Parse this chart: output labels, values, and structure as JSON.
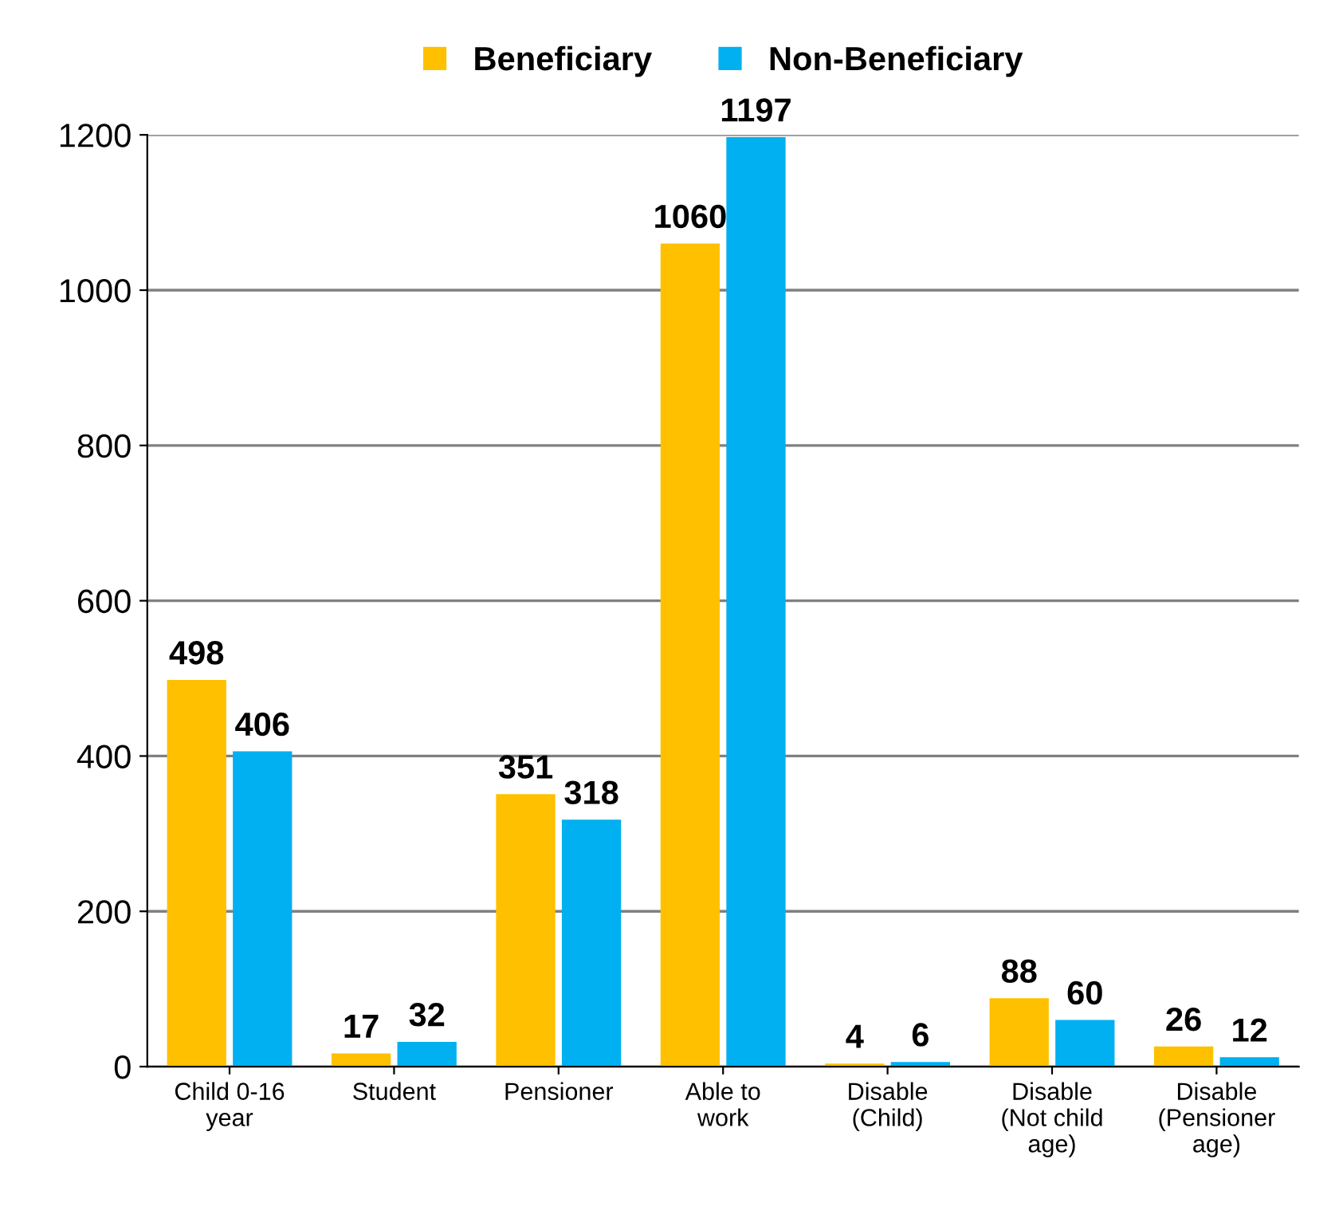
{
  "chart_data": {
    "type": "bar",
    "categories": [
      "Child 0-16\nyear",
      "Student",
      "Pensioner",
      "Able to\nwork",
      "Disable\n(Child)",
      "Disable\n(Not child\nage)",
      "Disable\n(Pensioner\nage)"
    ],
    "series": [
      {
        "name": "Beneficiary",
        "color": "#ffc000",
        "values": [
          498,
          17,
          351,
          1060,
          4,
          88,
          26
        ]
      },
      {
        "name": "Non-Beneficiary",
        "color": "#00b0f0",
        "values": [
          406,
          32,
          318,
          1197,
          6,
          60,
          12
        ]
      }
    ],
    "ylim": [
      0,
      1200
    ],
    "yticks": [
      0,
      200,
      400,
      600,
      800,
      1000,
      1200
    ],
    "grid": "y",
    "legend": "top",
    "data_labels": true
  }
}
